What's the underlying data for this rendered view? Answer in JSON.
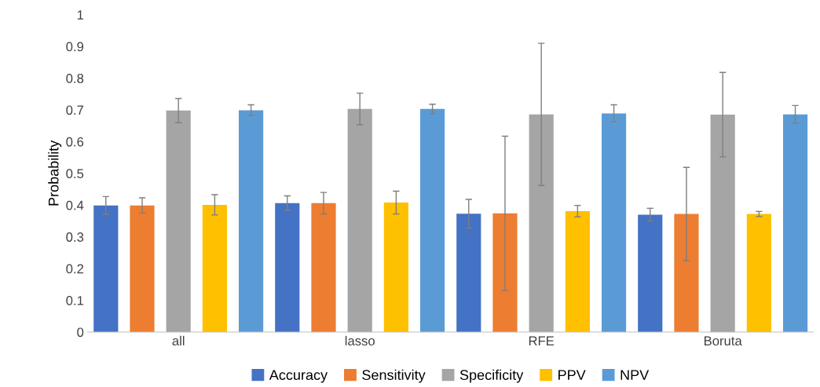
{
  "chart_data": {
    "type": "bar",
    "ylabel": "Probability",
    "categories": [
      "all",
      "lasso",
      "RFE",
      "Boruta"
    ],
    "series": [
      {
        "name": "Accuracy",
        "color": "#4472c4",
        "values": [
          0.399,
          0.406,
          0.373,
          0.37
        ],
        "errors": [
          0.028,
          0.023,
          0.045,
          0.02
        ]
      },
      {
        "name": "Sensitivity",
        "color": "#ed7d31",
        "values": [
          0.399,
          0.406,
          0.374,
          0.372
        ],
        "errors": [
          0.024,
          0.034,
          0.243,
          0.147
        ]
      },
      {
        "name": "Specificity",
        "color": "#a5a5a5",
        "values": [
          0.698,
          0.703,
          0.686,
          0.685
        ],
        "errors": [
          0.038,
          0.05,
          0.224,
          0.133
        ]
      },
      {
        "name": "PPV",
        "color": "#ffc000",
        "values": [
          0.401,
          0.408,
          0.381,
          0.372
        ],
        "errors": [
          0.032,
          0.036,
          0.018,
          0.008
        ]
      },
      {
        "name": "NPV",
        "color": "#5b9bd5",
        "values": [
          0.699,
          0.703,
          0.689,
          0.686
        ],
        "errors": [
          0.017,
          0.015,
          0.027,
          0.028
        ]
      }
    ],
    "ylim": [
      0,
      1
    ],
    "yticks": [
      0,
      0.1,
      0.2,
      0.3,
      0.4,
      0.5,
      0.6,
      0.7,
      0.8,
      0.9,
      1
    ],
    "grid": false,
    "legend": "bottom"
  }
}
